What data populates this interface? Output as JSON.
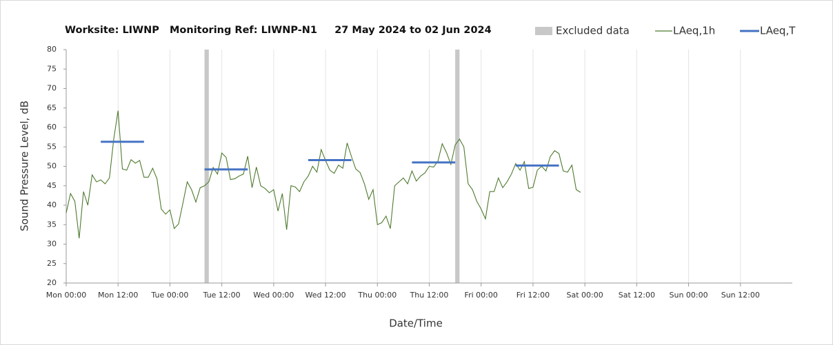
{
  "chart_data": {
    "type": "line",
    "title": "Worksite: LIWNP   Monitoring Ref: LIWNP-N1     27 May 2024 to 02 Jun 2024",
    "y_label": "Sound Pressure Level, dB",
    "x_label": "Date/Time",
    "xlim": [
      0,
      168
    ],
    "xticks": [
      {
        "value": 0,
        "label": "Mon 00:00"
      },
      {
        "value": 12,
        "label": "Mon 12:00"
      },
      {
        "value": 24,
        "label": "Tue 00:00"
      },
      {
        "value": 36,
        "label": "Tue 12:00"
      },
      {
        "value": 48,
        "label": "Wed 00:00"
      },
      {
        "value": 60,
        "label": "Wed 12:00"
      },
      {
        "value": 72,
        "label": "Thu 00:00"
      },
      {
        "value": 84,
        "label": "Thu 12:00"
      },
      {
        "value": 96,
        "label": "Fri 00:00"
      },
      {
        "value": 108,
        "label": "Fri 12:00"
      },
      {
        "value": 120,
        "label": "Sat 00:00"
      },
      {
        "value": 132,
        "label": "Sat 12:00"
      },
      {
        "value": 144,
        "label": "Sun 00:00"
      },
      {
        "value": 156,
        "label": "Sun 12:00"
      }
    ],
    "ylim": [
      20,
      80
    ],
    "yticks": [
      20,
      25,
      30,
      35,
      40,
      45,
      50,
      55,
      60,
      65,
      70,
      75,
      80
    ],
    "grid": "x",
    "legend": "top-right",
    "excluded": {
      "name": "Excluded data",
      "color": "#c8c8c8",
      "ranges": [
        [
          32,
          33
        ],
        [
          90,
          91
        ]
      ]
    },
    "series": [
      {
        "name": "LAeq,1h",
        "color": "#4e7a2e",
        "x": [
          0,
          1,
          2,
          3,
          4,
          5,
          6,
          7,
          8,
          9,
          10,
          11,
          12,
          13,
          14,
          15,
          16,
          17,
          18,
          19,
          20,
          21,
          22,
          23,
          24,
          25,
          26,
          27,
          28,
          29,
          30,
          31,
          32,
          33,
          34,
          35,
          36,
          37,
          38,
          39,
          40,
          41,
          42,
          43,
          44,
          45,
          46,
          47,
          48,
          49,
          50,
          51,
          52,
          53,
          54,
          55,
          56,
          57,
          58,
          59,
          60,
          61,
          62,
          63,
          64,
          65,
          66,
          67,
          68,
          69,
          70,
          71,
          72,
          73,
          74,
          75,
          76,
          77,
          78,
          79,
          80,
          81,
          82,
          83,
          84,
          85,
          86,
          87,
          88,
          89,
          90,
          91,
          92,
          93,
          94,
          95,
          96,
          97,
          98,
          99,
          100,
          101,
          102,
          103,
          104,
          105,
          106,
          107,
          108,
          109,
          110,
          111,
          112,
          113,
          114,
          115,
          116,
          117,
          118,
          119
        ],
        "values": [
          38,
          43,
          41,
          31.5,
          43.5,
          40,
          47.8,
          46,
          46.5,
          45.5,
          47,
          57,
          64.3,
          49.3,
          49,
          51.7,
          50.8,
          51.5,
          47.2,
          47.2,
          49.5,
          46.8,
          39,
          37.7,
          38.8,
          34,
          35.2,
          40.5,
          46,
          44,
          40.8,
          44.5,
          45,
          46,
          49.7,
          48,
          53.4,
          52.3,
          46.6,
          46.8,
          47.5,
          48,
          52.6,
          44.5,
          49.8,
          45,
          44.3,
          43.2,
          44,
          38.5,
          43,
          33.7,
          45,
          44.7,
          43.5,
          46,
          47.5,
          50,
          48.5,
          54.3,
          51.5,
          49,
          48.2,
          50.3,
          49.5,
          56,
          52.5,
          49.3,
          48.4,
          45.5,
          41.5,
          44,
          35,
          35.5,
          37.2,
          34,
          45,
          46,
          47,
          45.5,
          48.8,
          46.2,
          47.5,
          48.3,
          50,
          49.8,
          51.3,
          55.8,
          53.5,
          50.5,
          55.5,
          57,
          55,
          45.5,
          44,
          41,
          39,
          36.5,
          43.5,
          43.5,
          47,
          44.5,
          46,
          48,
          50.7,
          49,
          51.2,
          44.3,
          44.6,
          49,
          50,
          48.8,
          52.5,
          54,
          53.3,
          48.8,
          48.5,
          50.3,
          44,
          43.3
        ]
      },
      {
        "name": "LAeq,T",
        "color": "#4472c4",
        "x": [
          [
            8,
            18
          ],
          [
            32,
            42
          ],
          [
            56,
            66
          ],
          [
            80,
            90
          ],
          [
            104,
            114
          ]
        ],
        "values": [
          56.3,
          49.2,
          51.6,
          51.0,
          50.2
        ]
      }
    ]
  }
}
